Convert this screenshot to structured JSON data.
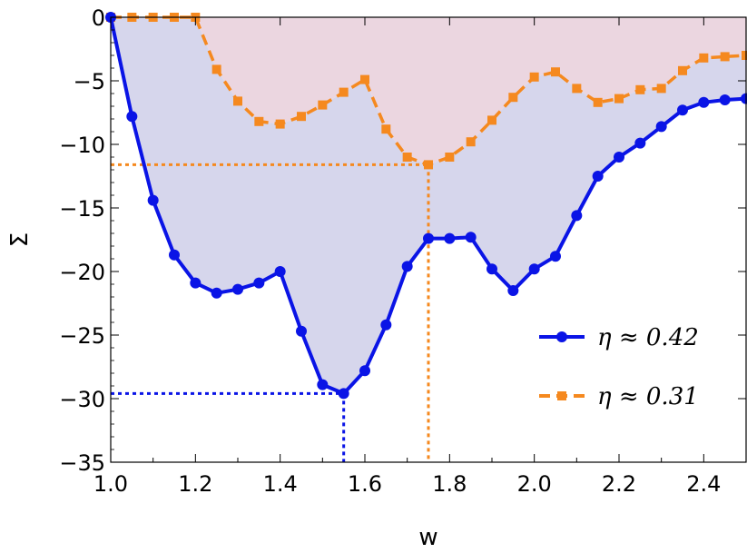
{
  "chart_data": {
    "type": "line",
    "xlabel": "w",
    "ylabel": "Σ",
    "xlim": [
      1.0,
      2.5
    ],
    "ylim": [
      -35,
      0
    ],
    "x_ticks": [
      "1.0",
      "1.2",
      "1.4",
      "1.6",
      "1.8",
      "2.0",
      "2.2",
      "2.4"
    ],
    "y_ticks": [
      "0",
      "−5",
      "−10",
      "−15",
      "−20",
      "−25",
      "−30",
      "−35"
    ],
    "x": [
      1.0,
      1.05,
      1.1,
      1.15,
      1.2,
      1.25,
      1.3,
      1.35,
      1.4,
      1.45,
      1.5,
      1.55,
      1.6,
      1.65,
      1.7,
      1.75,
      1.8,
      1.85,
      1.9,
      1.95,
      2.0,
      2.05,
      2.1,
      2.15,
      2.2,
      2.25,
      2.3,
      2.35,
      2.4,
      2.45,
      2.5
    ],
    "series": [
      {
        "name": "η ≈ 0.42",
        "color": "#0a14e6",
        "marker": "circle",
        "linestyle": "solid",
        "fill": "#d6d6ec",
        "values": [
          0.0,
          -7.8,
          -14.4,
          -18.7,
          -20.9,
          -21.7,
          -21.4,
          -20.9,
          -20.0,
          -24.7,
          -28.9,
          -29.6,
          -27.8,
          -24.2,
          -19.6,
          -17.4,
          -17.4,
          -17.3,
          -19.8,
          -21.5,
          -19.8,
          -18.8,
          -15.6,
          -12.5,
          -11.0,
          -9.9,
          -8.6,
          -7.3,
          -6.7,
          -6.5,
          -6.4
        ],
        "marked_minimum": {
          "x": 1.55,
          "y": -29.6
        }
      },
      {
        "name": "η ≈ 0.31",
        "color": "#f5891f",
        "marker": "square",
        "linestyle": "dashed",
        "fill": "#ebd6e0",
        "values": [
          0.0,
          0.0,
          0.0,
          0.0,
          0.0,
          -4.1,
          -6.6,
          -8.2,
          -8.4,
          -7.8,
          -6.9,
          -5.9,
          -4.9,
          -8.8,
          -11.0,
          -11.6,
          -11.0,
          -9.8,
          -8.1,
          -6.3,
          -4.7,
          -4.3,
          -5.6,
          -6.7,
          -6.4,
          -5.7,
          -5.6,
          -4.2,
          -3.2,
          -3.1,
          -3.0
        ],
        "marked_minimum": {
          "x": 1.75,
          "y": -11.6
        }
      }
    ],
    "legend_position": "lower-right",
    "grid": false
  }
}
